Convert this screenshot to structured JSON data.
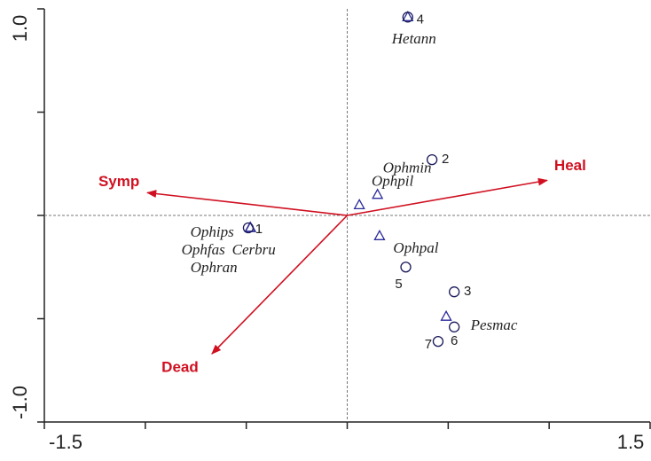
{
  "chart_data": {
    "type": "ordination",
    "xlim": [
      -1.5,
      1.5
    ],
    "ylim": [
      -1,
      1
    ],
    "xticks": [
      -1.5,
      1.5
    ],
    "yticks": [
      {
        "value": -1,
        "label": "-1.0"
      },
      {
        "value": 1,
        "label": "1.0"
      }
    ],
    "xminorticks": [
      -1,
      -0.5,
      0,
      0.5,
      1
    ],
    "yminorticks": [
      -0.5,
      0,
      0.5
    ],
    "arrow_color": "#d01020",
    "site_color": "#1a1a5a",
    "species_color": "#2a2a9a",
    "arrows": [
      {
        "name": "Symp",
        "x": -0.99,
        "y": 0.11
      },
      {
        "name": "Heal",
        "x": 0.99,
        "y": 0.17
      },
      {
        "name": "Dead",
        "x": -0.67,
        "y": -0.67
      }
    ],
    "sites": [
      {
        "name": "1",
        "x": -0.49,
        "y": -0.06
      },
      {
        "name": "2",
        "x": 0.42,
        "y": 0.27
      },
      {
        "name": "3",
        "x": 0.53,
        "y": -0.37
      },
      {
        "name": "4",
        "x": 0.3,
        "y": 0.96
      },
      {
        "name": "5",
        "x": 0.29,
        "y": -0.25
      },
      {
        "name": "6",
        "x": 0.53,
        "y": -0.54
      },
      {
        "name": "7",
        "x": 0.45,
        "y": -0.61
      }
    ],
    "species": [
      {
        "name": "Hetann",
        "x": 0.3,
        "y": 0.96
      },
      {
        "name": "Ophmin",
        "x": 0.06,
        "y": 0.05
      },
      {
        "name": "Ophpil",
        "x": 0.15,
        "y": 0.1
      },
      {
        "name": "Ophpal",
        "x": 0.16,
        "y": -0.1
      },
      {
        "name": "Pesmac",
        "x": 0.49,
        "y": -0.49
      },
      {
        "name": "Ophips",
        "x": -0.48,
        "y": -0.06
      },
      {
        "name": "Ophfas",
        "x": -0.48,
        "y": -0.06
      },
      {
        "name": "Cerbru",
        "x": -0.48,
        "y": -0.06
      },
      {
        "name": "Ophran",
        "x": -0.48,
        "y": -0.06
      }
    ]
  }
}
